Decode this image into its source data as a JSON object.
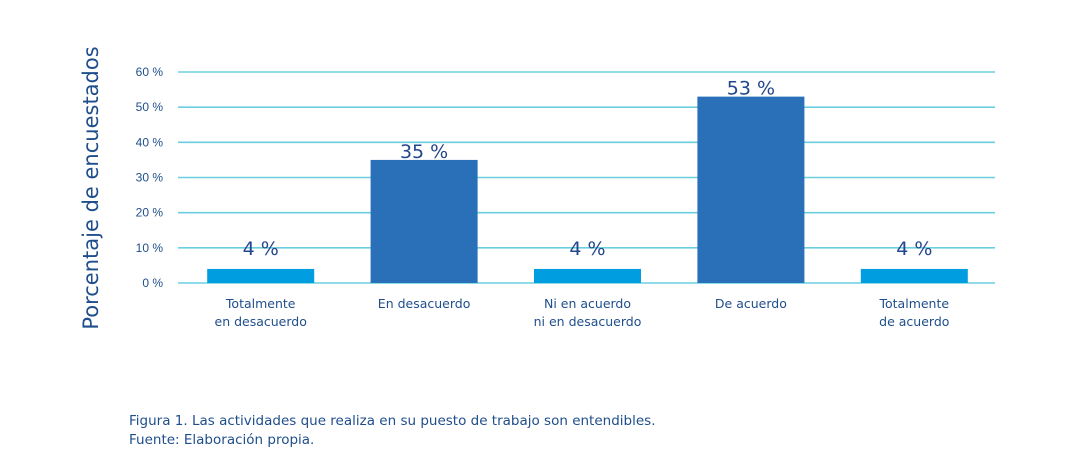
{
  "chart_data": {
    "type": "bar",
    "ylabel": "Porcentaje de encuestados",
    "xlabel": "",
    "ylim": [
      0,
      60
    ],
    "yticks": [
      "0 %",
      "10 %",
      "20 %",
      "30 %",
      "40 %",
      "50 %",
      "60 %"
    ],
    "ytick_values": [
      0,
      10,
      20,
      30,
      40,
      50,
      60
    ],
    "grid": true,
    "categories": [
      [
        "Totalmente",
        "en desacuerdo"
      ],
      [
        "En desacuerdo"
      ],
      [
        "Ni en acuerdo",
        "ni en desacuerdo"
      ],
      [
        "De acuerdo"
      ],
      [
        "Totalmente",
        "de acuerdo"
      ]
    ],
    "values": [
      4,
      35,
      4,
      53,
      4
    ],
    "data_labels": [
      "4 %",
      "35 %",
      "4 %",
      "53 %",
      "4 %"
    ],
    "colors": {
      "major": "#2970b8",
      "minor": "#009ee0",
      "grid": "#6ccfe0",
      "text": "#1f4e8c"
    }
  },
  "caption": {
    "line1": "Figura 1. Las actividades que realiza en su puesto de trabajo son entendibles.",
    "line2": "Fuente: Elaboración propia."
  }
}
